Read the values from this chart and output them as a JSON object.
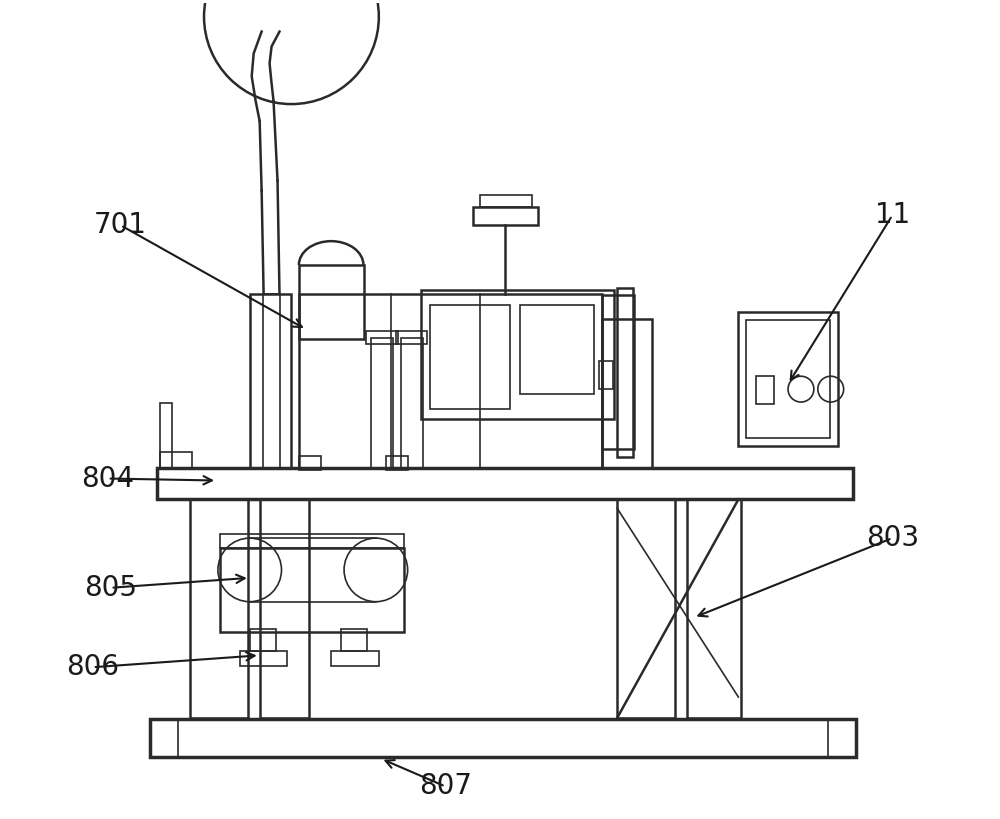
{
  "bg_color": "#ffffff",
  "line_color": "#2a2a2a",
  "label_color": "#1a1a1a",
  "label_fontsize": 20,
  "arrow_color": "#1a1a1a"
}
